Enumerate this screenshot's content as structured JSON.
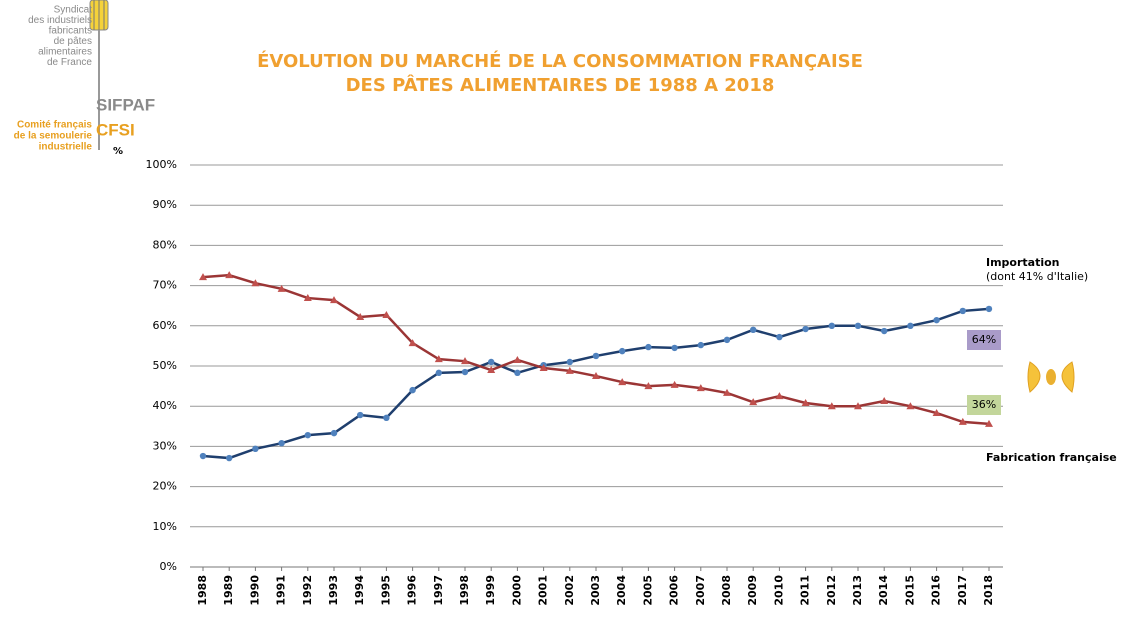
{
  "logo": {
    "lines": [
      "Syndicat",
      "des industriels",
      "fabricants",
      "de pâtes",
      "alimentaires",
      "de France"
    ],
    "name": "SIFPAF",
    "lines2": [
      "Comité français",
      "de la semoulerie",
      "industrielle"
    ],
    "name2": "CFSI"
  },
  "chart_data": {
    "type": "line",
    "title": [
      "ÉVOLUTION DU MARCHÉ DE LA CONSOMMATION FRANÇAISE",
      "DES PÂTES ALIMENTAIRES DE 1988 A 2018"
    ],
    "y_unit": "%",
    "categories": [
      "1988",
      "1989",
      "1990",
      "1991",
      "1992",
      "1993",
      "1994",
      "1995",
      "1996",
      "1997",
      "1998",
      "1999",
      "2000",
      "2001",
      "2002",
      "2003",
      "2004",
      "2005",
      "2006",
      "2007",
      "2008",
      "2009",
      "2010",
      "2011",
      "2012",
      "2013",
      "2014",
      "2015",
      "2016",
      "2017",
      "2018"
    ],
    "series": [
      {
        "name": "Importation",
        "color": "#1f3f6e",
        "marker_color": "#4f81bd",
        "marker": "circle",
        "values": [
          27.6,
          27.1,
          29.4,
          30.8,
          32.8,
          33.3,
          37.8,
          37.1,
          44.0,
          48.3,
          48.5,
          51.0,
          48.3,
          50.2,
          51.0,
          52.5,
          53.7,
          54.7,
          54.5,
          55.2,
          56.5,
          59.0,
          57.2,
          59.2,
          60.0,
          60.0,
          58.7,
          60.0,
          61.4,
          63.7,
          64.2
        ]
      },
      {
        "name": "Fabrication française",
        "color": "#9b3535",
        "marker_color": "#c0504d",
        "marker": "triangle",
        "values": [
          72.1,
          72.6,
          70.6,
          69.2,
          66.9,
          66.4,
          62.2,
          62.7,
          55.7,
          51.7,
          51.2,
          49.0,
          51.5,
          49.5,
          48.8,
          47.5,
          46.0,
          45.0,
          45.3,
          44.5,
          43.3,
          41.0,
          42.5,
          40.8,
          40.0,
          40.0,
          41.3,
          40.0,
          38.3,
          36.1,
          35.6
        ]
      }
    ],
    "annotations": [
      {
        "text": "(dont 41% d'Italie)"
      },
      {
        "text": "64%",
        "color": "#a99bc9"
      },
      {
        "text": "36%",
        "color": "#c3d69b"
      }
    ],
    "ylim": [
      0,
      100
    ],
    "yticks": [
      {
        "value": 0,
        "label": "0%"
      },
      {
        "value": 10,
        "label": "10%"
      },
      {
        "value": 20,
        "label": "20%"
      },
      {
        "value": 30,
        "label": "30%"
      },
      {
        "value": 40,
        "label": "40%"
      },
      {
        "value": 50,
        "label": "50%"
      },
      {
        "value": 60,
        "label": "60%"
      },
      {
        "value": 70,
        "label": "70%"
      },
      {
        "value": 80,
        "label": "80%"
      },
      {
        "value": 90,
        "label": "90%"
      },
      {
        "value": 100,
        "label": "100%"
      }
    ],
    "grid": true
  }
}
